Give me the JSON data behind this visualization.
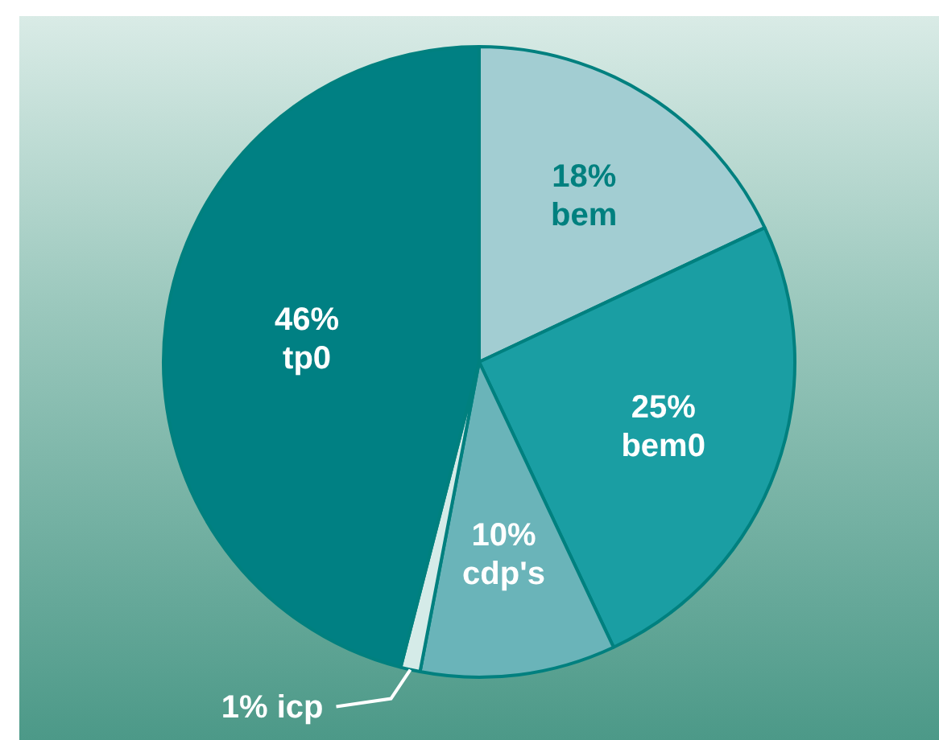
{
  "chart_data": {
    "type": "pie",
    "categories": [
      "bem",
      "bem0",
      "cdp's",
      "icp",
      "tp0"
    ],
    "values": [
      18,
      25,
      10,
      1,
      46
    ],
    "value_labels": [
      "18%",
      "25%",
      "10%",
      "1%",
      "46%"
    ],
    "colors": [
      "#a2cdd2",
      "#1a9ea3",
      "#6ab4b9",
      "#d5ebe8",
      "#008083"
    ],
    "legend": false
  }
}
